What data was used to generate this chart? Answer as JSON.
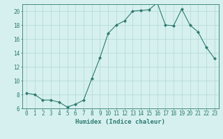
{
  "x": [
    0,
    1,
    2,
    3,
    4,
    5,
    6,
    7,
    8,
    9,
    10,
    11,
    12,
    13,
    14,
    15,
    16,
    17,
    18,
    19,
    20,
    21,
    22,
    23
  ],
  "y": [
    8.2,
    8.0,
    7.2,
    7.2,
    6.9,
    6.2,
    6.6,
    7.2,
    10.3,
    13.3,
    16.8,
    18.0,
    18.6,
    20.0,
    20.1,
    20.2,
    21.2,
    18.0,
    17.9,
    20.3,
    18.0,
    17.0,
    14.8,
    13.2
  ],
  "line_color": "#2e7b6e",
  "marker": "D",
  "marker_size": 2,
  "bg_color": "#d6f0f0",
  "grid_color": "#b8dada",
  "tick_color": "#2e7b6e",
  "xlabel": "Humidex (Indice chaleur)",
  "xlim": [
    -0.5,
    23.5
  ],
  "ylim": [
    6,
    21
  ],
  "yticks": [
    6,
    8,
    10,
    12,
    14,
    16,
    18,
    20
  ],
  "xticks": [
    0,
    1,
    2,
    3,
    4,
    5,
    6,
    7,
    8,
    9,
    10,
    11,
    12,
    13,
    14,
    15,
    16,
    17,
    18,
    19,
    20,
    21,
    22,
    23
  ],
  "tick_fontsize": 5.5,
  "xlabel_fontsize": 6.5
}
